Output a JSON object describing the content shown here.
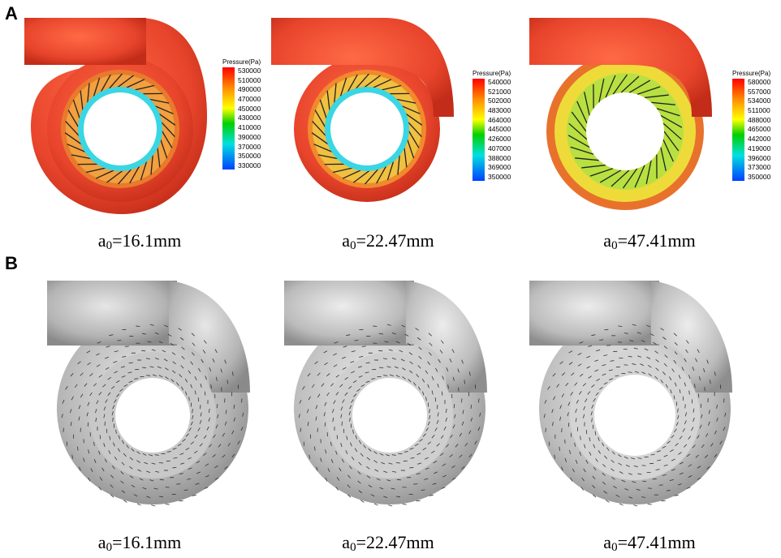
{
  "panels": {
    "A": {
      "label": "A"
    },
    "B": {
      "label": "B"
    }
  },
  "captions": [
    {
      "prefix": "a",
      "sub": "0",
      "rest": "=16.1mm"
    },
    {
      "prefix": "a",
      "sub": "0",
      "rest": "=22.47mm"
    },
    {
      "prefix": "a",
      "sub": "0",
      "rest": "=47.41mm"
    }
  ],
  "legends": [
    {
      "title": "Pressure(Pa)",
      "ticks": [
        "530000",
        "510000",
        "490000",
        "470000",
        "450000",
        "430000",
        "410000",
        "390000",
        "370000",
        "350000",
        "330000"
      ]
    },
    {
      "title": "Pressure(Pa)",
      "ticks": [
        "540000",
        "521000",
        "502000",
        "483000",
        "464000",
        "445000",
        "426000",
        "407000",
        "388000",
        "369000",
        "350000"
      ]
    },
    {
      "title": "Pressure(Pa)",
      "ticks": [
        "580000",
        "557000",
        "534000",
        "511000",
        "488000",
        "465000",
        "442000",
        "419000",
        "396000",
        "373000",
        "350000"
      ]
    }
  ],
  "colors": {
    "volute_red": "#e8452c",
    "legend_gradient": [
      "#ff0000",
      "#ff8c00",
      "#ffff00",
      "#00d000",
      "#00e0e0",
      "#0040ff"
    ]
  }
}
